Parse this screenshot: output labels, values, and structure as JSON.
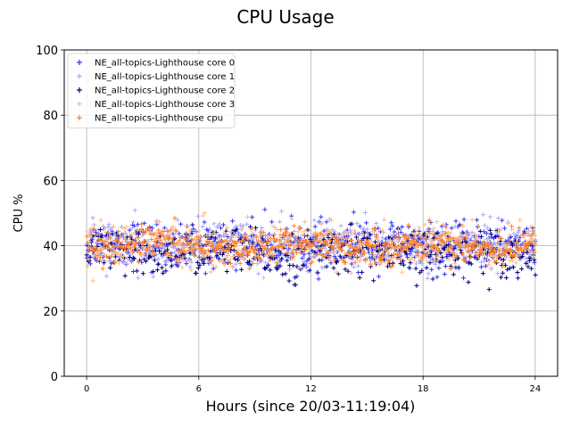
{
  "chart_data": {
    "type": "scatter",
    "title": "CPU Usage",
    "xlabel": "Hours (since 20/03-11:19:04)",
    "ylabel": "CPU %",
    "xlim": [
      -1.2,
      25.2
    ],
    "ylim": [
      0,
      100
    ],
    "xticks": [
      0,
      6,
      12,
      18,
      24
    ],
    "yticks": [
      0,
      20,
      40,
      60,
      80,
      100
    ],
    "grid": true,
    "legend_position": "top-left",
    "marker": "+",
    "series": [
      {
        "name": "NE_all-topics-Lighthouse core 0",
        "color": "#3333ff",
        "mean": 40,
        "range": [
          28,
          56
        ]
      },
      {
        "name": "NE_all-topics-Lighthouse core 1",
        "color": "#aaaaff",
        "mean": 40,
        "range": [
          30,
          55
        ]
      },
      {
        "name": "NE_all-topics-Lighthouse core 2",
        "color": "#000080",
        "mean": 38,
        "range": [
          25,
          53
        ]
      },
      {
        "name": "NE_all-topics-Lighthouse core 3",
        "color": "#ffbb88",
        "mean": 40,
        "range": [
          25,
          58
        ]
      },
      {
        "name": "NE_all-topics-Lighthouse cpu",
        "color": "#ff7f27",
        "mean": 40,
        "range": [
          33,
          50
        ]
      }
    ]
  }
}
